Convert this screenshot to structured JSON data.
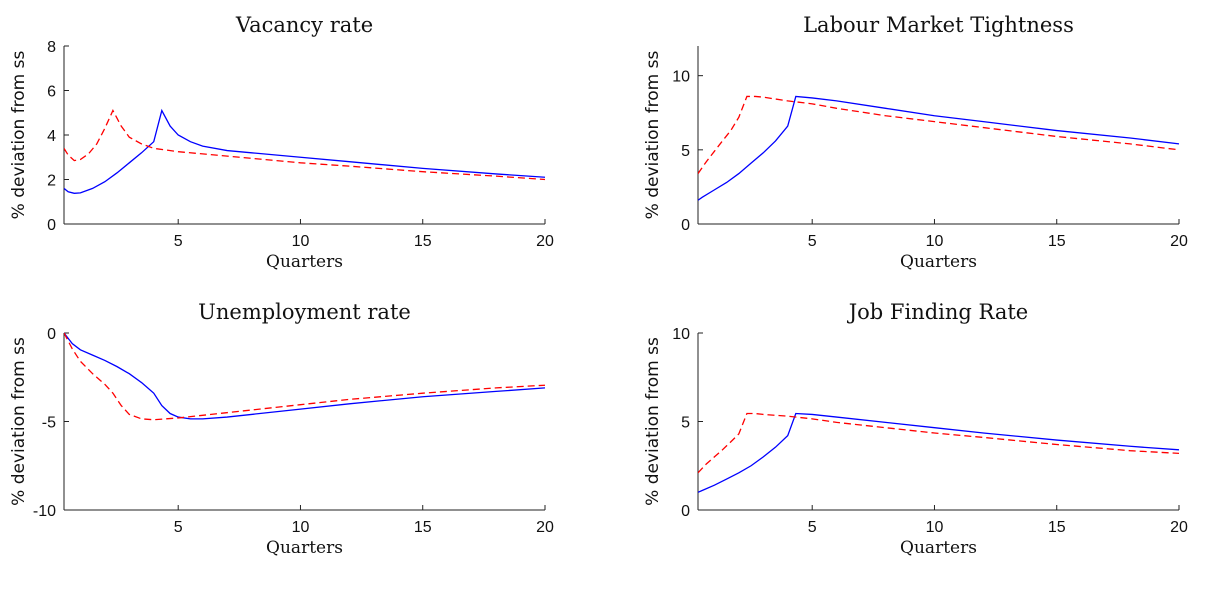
{
  "chart_data": [
    {
      "type": "line",
      "title": "Vacancy rate",
      "xlabel": "Quarters",
      "ylabel": "% deviation from ss",
      "xlim": [
        0.33,
        20
      ],
      "ylim": [
        0,
        8
      ],
      "xticks": [
        5,
        10,
        15,
        20
      ],
      "yticks": [
        0,
        2,
        4,
        6,
        8
      ],
      "grid": false,
      "series": [
        {
          "color": "#0000ff",
          "dash": "solid",
          "x": [
            0.33,
            0.5,
            0.75,
            1.0,
            1.5,
            2.0,
            2.5,
            3.0,
            3.5,
            4.0,
            4.33,
            4.67,
            5.0,
            5.5,
            6.0,
            7.0,
            8.0,
            10.0,
            12.0,
            15.0,
            18.0,
            20.0
          ],
          "y": [
            1.6,
            1.45,
            1.38,
            1.4,
            1.6,
            1.9,
            2.3,
            2.75,
            3.2,
            3.7,
            5.1,
            4.4,
            4.0,
            3.7,
            3.5,
            3.3,
            3.2,
            3.0,
            2.8,
            2.5,
            2.25,
            2.1
          ]
        },
        {
          "color": "#ff0000",
          "dash": "dashed",
          "x": [
            0.33,
            0.5,
            0.75,
            1.0,
            1.33,
            1.67,
            2.0,
            2.33,
            2.67,
            3.0,
            3.5,
            4.0,
            5.0,
            6.0,
            8.0,
            10.0,
            12.0,
            15.0,
            18.0,
            20.0
          ],
          "y": [
            3.4,
            3.1,
            2.85,
            2.9,
            3.15,
            3.6,
            4.3,
            5.1,
            4.4,
            3.9,
            3.6,
            3.4,
            3.25,
            3.15,
            2.95,
            2.75,
            2.6,
            2.35,
            2.15,
            2.0
          ]
        }
      ]
    },
    {
      "type": "line",
      "title": "Labour Market Tightness",
      "xlabel": "Quarters",
      "ylabel": "% deviation from ss",
      "xlim": [
        0.33,
        20
      ],
      "ylim": [
        0,
        12
      ],
      "xticks": [
        5,
        10,
        15,
        20
      ],
      "yticks": [
        0,
        5,
        10
      ],
      "grid": false,
      "series": [
        {
          "color": "#0000ff",
          "dash": "solid",
          "x": [
            0.33,
            0.5,
            1.0,
            1.5,
            2.0,
            2.5,
            3.0,
            3.5,
            4.0,
            4.33,
            5.0,
            6.0,
            8.0,
            10.0,
            12.0,
            15.0,
            18.0,
            20.0
          ],
          "y": [
            1.6,
            1.8,
            2.3,
            2.8,
            3.4,
            4.1,
            4.8,
            5.6,
            6.6,
            8.6,
            8.5,
            8.3,
            7.8,
            7.3,
            6.9,
            6.3,
            5.8,
            5.4
          ]
        },
        {
          "color": "#ff0000",
          "dash": "dashed",
          "x": [
            0.33,
            0.67,
            1.0,
            1.33,
            1.67,
            2.0,
            2.33,
            2.67,
            3.0,
            4.0,
            5.0,
            6.0,
            8.0,
            10.0,
            12.0,
            15.0,
            18.0,
            20.0
          ],
          "y": [
            3.4,
            4.2,
            4.9,
            5.6,
            6.3,
            7.2,
            8.6,
            8.6,
            8.55,
            8.3,
            8.1,
            7.8,
            7.3,
            6.9,
            6.5,
            5.9,
            5.4,
            5.0
          ]
        }
      ]
    },
    {
      "type": "line",
      "title": "Unemployment rate",
      "xlabel": "Quarters",
      "ylabel": "% deviation from ss",
      "xlim": [
        0.33,
        20
      ],
      "ylim": [
        -10,
        0
      ],
      "xticks": [
        5,
        10,
        15,
        20
      ],
      "yticks": [
        -10,
        -5,
        0
      ],
      "grid": false,
      "series": [
        {
          "color": "#0000ff",
          "dash": "solid",
          "x": [
            0.33,
            0.67,
            1.0,
            1.5,
            2.0,
            2.5,
            3.0,
            3.5,
            4.0,
            4.33,
            4.67,
            5.0,
            5.5,
            6.0,
            7.0,
            8.0,
            10.0,
            12.0,
            15.0,
            18.0,
            20.0
          ],
          "y": [
            0.0,
            -0.6,
            -0.95,
            -1.25,
            -1.55,
            -1.9,
            -2.3,
            -2.8,
            -3.4,
            -4.1,
            -4.55,
            -4.75,
            -4.85,
            -4.85,
            -4.75,
            -4.6,
            -4.3,
            -4.0,
            -3.6,
            -3.3,
            -3.1
          ]
        },
        {
          "color": "#ff0000",
          "dash": "dashed",
          "x": [
            0.33,
            0.67,
            1.0,
            1.5,
            2.0,
            2.33,
            2.67,
            3.0,
            3.5,
            4.0,
            5.0,
            6.0,
            8.0,
            10.0,
            12.0,
            15.0,
            18.0,
            20.0
          ],
          "y": [
            0.0,
            -0.9,
            -1.6,
            -2.3,
            -2.9,
            -3.4,
            -4.1,
            -4.6,
            -4.85,
            -4.9,
            -4.8,
            -4.65,
            -4.35,
            -4.05,
            -3.75,
            -3.4,
            -3.1,
            -2.95
          ]
        }
      ]
    },
    {
      "type": "line",
      "title": "Job Finding Rate",
      "xlabel": "Quarters",
      "ylabel": "% deviation from ss",
      "xlim": [
        0.33,
        20
      ],
      "ylim": [
        0,
        10
      ],
      "xticks": [
        5,
        10,
        15,
        20
      ],
      "yticks": [
        0,
        5,
        10
      ],
      "grid": false,
      "series": [
        {
          "color": "#0000ff",
          "dash": "solid",
          "x": [
            0.33,
            0.5,
            1.0,
            1.5,
            2.0,
            2.5,
            3.0,
            3.5,
            4.0,
            4.33,
            5.0,
            6.0,
            8.0,
            10.0,
            12.0,
            15.0,
            18.0,
            20.0
          ],
          "y": [
            1.0,
            1.1,
            1.4,
            1.75,
            2.1,
            2.5,
            3.0,
            3.55,
            4.2,
            5.45,
            5.4,
            5.25,
            4.95,
            4.65,
            4.35,
            3.95,
            3.6,
            3.4
          ]
        },
        {
          "color": "#ff0000",
          "dash": "dashed",
          "x": [
            0.33,
            0.67,
            1.0,
            1.33,
            1.67,
            2.0,
            2.33,
            2.67,
            3.0,
            4.0,
            5.0,
            6.0,
            8.0,
            10.0,
            12.0,
            15.0,
            18.0,
            20.0
          ],
          "y": [
            2.1,
            2.6,
            3.0,
            3.4,
            3.85,
            4.3,
            5.45,
            5.45,
            5.4,
            5.3,
            5.15,
            4.95,
            4.65,
            4.35,
            4.1,
            3.7,
            3.35,
            3.2
          ]
        }
      ]
    }
  ]
}
